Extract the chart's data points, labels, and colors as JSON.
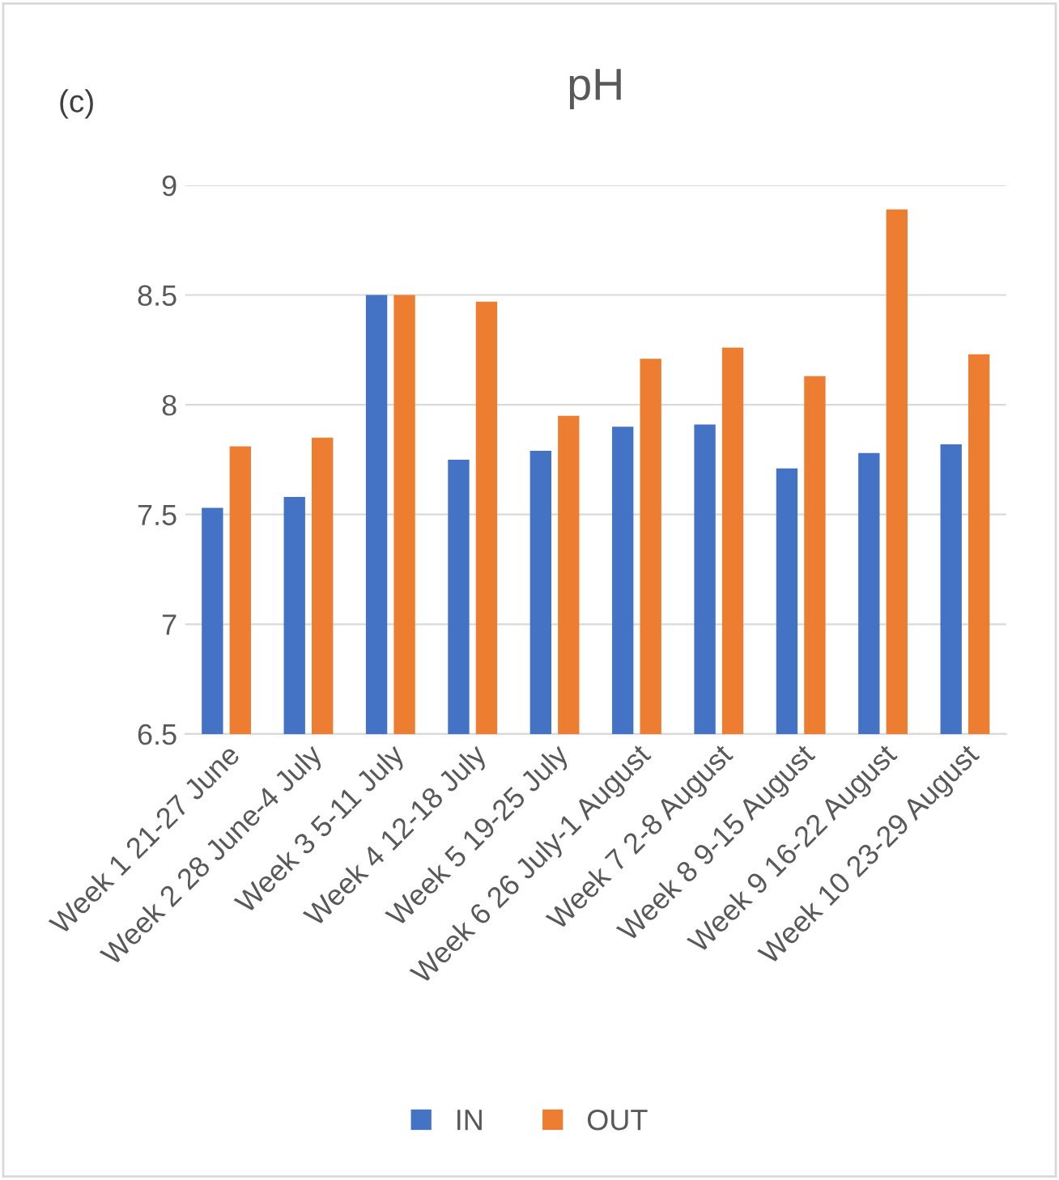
{
  "chart_data": {
    "type": "bar",
    "title": "pH",
    "annotations": [
      "(c)"
    ],
    "categories": [
      "Week 1 21-27 June",
      "Week 2 28 June-4 July",
      "Week 3 5-11 July",
      "Week 4 12-18 July",
      "Week 5 19-25 July",
      "Week 6 26 July-1 August",
      "Week 7 2-8 August",
      "Week 8 9-15 August",
      "Week 9 16-22 August",
      "Week 10 23-29 August"
    ],
    "series": [
      {
        "name": "IN",
        "color": "#4472c4",
        "values": [
          7.53,
          7.58,
          8.5,
          7.75,
          7.79,
          7.9,
          7.91,
          7.71,
          7.78,
          7.82
        ]
      },
      {
        "name": "OUT",
        "color": "#ed7d31",
        "values": [
          7.81,
          7.85,
          8.5,
          8.47,
          7.95,
          8.21,
          8.26,
          8.13,
          8.89,
          8.23
        ]
      }
    ],
    "ylim": [
      6.5,
      9
    ],
    "yticks": [
      6.5,
      7,
      7.5,
      8,
      8.5,
      9
    ],
    "grid": "y",
    "legend": "bottom"
  }
}
